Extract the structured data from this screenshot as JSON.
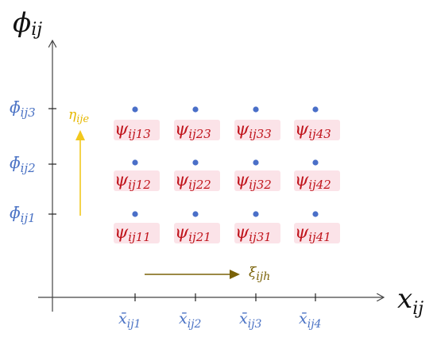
{
  "axes": {
    "y_title": {
      "main": "ϕ",
      "sub": "ij"
    },
    "x_title": {
      "main": "x",
      "sub": "ij"
    }
  },
  "y_ticks": [
    {
      "main": "ϕ̄",
      "sub": "ij3"
    },
    {
      "main": "ϕ̄",
      "sub": "ij2"
    },
    {
      "main": "ϕ̄",
      "sub": "ij1"
    }
  ],
  "x_ticks": [
    {
      "main": "x̄",
      "sub": "ij1"
    },
    {
      "main": "x̄",
      "sub": "ij2"
    },
    {
      "main": "x̄",
      "sub": "ij3"
    },
    {
      "main": "x̄",
      "sub": "ij4"
    }
  ],
  "grid_labels": [
    [
      {
        "main": "ψ",
        "sub": "ij13"
      },
      {
        "main": "ψ",
        "sub": "ij23"
      },
      {
        "main": "ψ",
        "sub": "ij33"
      },
      {
        "main": "ψ",
        "sub": "ij43"
      }
    ],
    [
      {
        "main": "ψ",
        "sub": "ij12"
      },
      {
        "main": "ψ",
        "sub": "ij22"
      },
      {
        "main": "ψ",
        "sub": "ij32"
      },
      {
        "main": "ψ",
        "sub": "ij42"
      }
    ],
    [
      {
        "main": "ψ",
        "sub": "ij11"
      },
      {
        "main": "ψ",
        "sub": "ij21"
      },
      {
        "main": "ψ",
        "sub": "ij31"
      },
      {
        "main": "ψ",
        "sub": "ij41"
      }
    ]
  ],
  "arrows": {
    "eta": {
      "main": "η",
      "sub": "ije"
    },
    "xi": {
      "main": "ξ",
      "sub": "ijh"
    }
  },
  "colors": {
    "axis": "#222222",
    "tick_label": "#4a72c4",
    "point": "#4a6fc8",
    "cell_label": "#c0141c",
    "cell_highlight": "#fbe3e8",
    "eta_arrow": "#f2c81e",
    "xi_arrow": "#7a6208"
  }
}
